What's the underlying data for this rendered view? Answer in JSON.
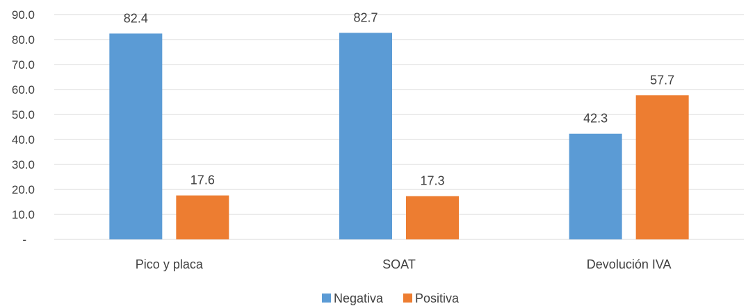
{
  "chart_data": {
    "type": "bar",
    "title": "",
    "xlabel": "",
    "ylabel": "",
    "categories": [
      "Pico y placa",
      "SOAT",
      "Devolución IVA"
    ],
    "series": [
      {
        "name": "Negativa",
        "values": [
          82.4,
          82.7,
          42.3
        ],
        "color": "#5b9bd5",
        "labels": [
          "82.4",
          "82.7",
          "42.3"
        ]
      },
      {
        "name": "Positiva",
        "values": [
          17.6,
          17.3,
          57.7
        ],
        "color": "#ed7d31",
        "labels": [
          "17.6",
          "17.3",
          "57.7"
        ]
      }
    ],
    "ylim": [
      0,
      90
    ],
    "yticks": [
      0,
      10,
      20,
      30,
      40,
      50,
      60,
      70,
      80,
      90
    ],
    "ytick_labels": [
      "-",
      "10.0",
      "20.0",
      "30.0",
      "40.0",
      "50.0",
      "60.0",
      "70.0",
      "80.0",
      "90.0"
    ],
    "grid": true,
    "legend_position": "bottom-center"
  }
}
